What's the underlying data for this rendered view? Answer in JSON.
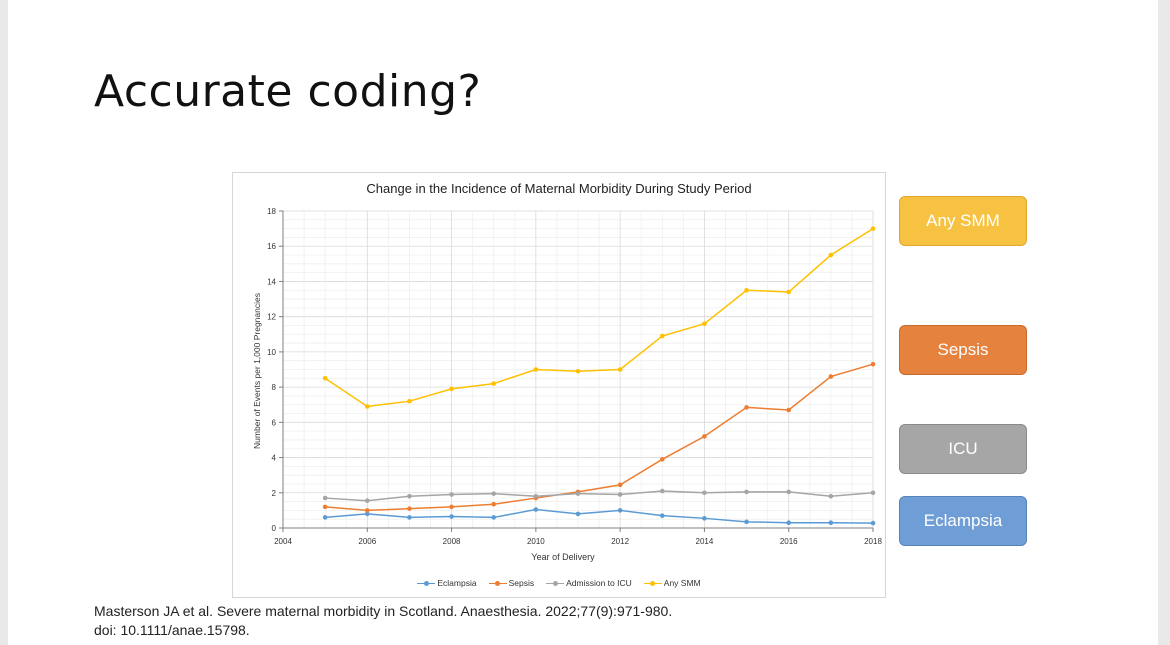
{
  "slide": {
    "title": "Accurate coding?",
    "citation_line1": "Masterson JA et al. Severe maternal morbidity in Scotland. Anaesthesia. 2022;77(9):971-980.",
    "citation_line2": "doi: 10.1111/anae.15798."
  },
  "category_boxes": [
    {
      "label": "Any SMM",
      "color": "#f7c242",
      "border": "#e0a82a"
    },
    {
      "label": "Sepsis",
      "color": "#e5823e",
      "border": "#c86a2c"
    },
    {
      "label": "ICU",
      "color": "#a6a6a6",
      "border": "#8a8a8a"
    },
    {
      "label": "Eclampsia",
      "color": "#6f9ed6",
      "border": "#5584bd"
    }
  ],
  "chart_data": {
    "type": "line",
    "title": "Change in the Incidence of Maternal Morbidity During Study Period",
    "xlabel": "Year of Delivery",
    "ylabel": "Number of Events per 1,000 Pregnancies",
    "xlim": [
      2004,
      2018
    ],
    "ylim": [
      0,
      18
    ],
    "x_ticks": [
      2004,
      2006,
      2008,
      2010,
      2012,
      2014,
      2016,
      2018
    ],
    "y_ticks": [
      0,
      2,
      4,
      6,
      8,
      10,
      12,
      14,
      16,
      18
    ],
    "grid": true,
    "legend_position": "bottom",
    "x": [
      2005,
      2006,
      2007,
      2008,
      2009,
      2010,
      2011,
      2012,
      2013,
      2014,
      2015,
      2016,
      2017,
      2018
    ],
    "series": [
      {
        "name": "Eclampsia",
        "color": "#5b9bd5",
        "values": [
          0.6,
          0.8,
          0.6,
          0.65,
          0.6,
          1.05,
          0.8,
          1.0,
          0.7,
          0.55,
          0.35,
          0.3,
          0.3,
          0.28
        ]
      },
      {
        "name": "Sepsis",
        "color": "#ed7d31",
        "values": [
          1.2,
          1.0,
          1.1,
          1.2,
          1.35,
          1.7,
          2.05,
          2.45,
          3.9,
          5.2,
          6.85,
          6.7,
          8.6,
          9.3
        ]
      },
      {
        "name": "Admission to ICU",
        "color": "#a5a5a5",
        "values": [
          1.7,
          1.55,
          1.8,
          1.9,
          1.95,
          1.8,
          1.95,
          1.9,
          2.1,
          2.0,
          2.05,
          2.05,
          1.8,
          2.0
        ]
      },
      {
        "name": "Any SMM",
        "color": "#ffc000",
        "values": [
          8.5,
          6.9,
          7.2,
          7.9,
          8.2,
          9.0,
          8.9,
          9.0,
          10.9,
          11.6,
          13.5,
          13.4,
          15.5,
          17.0
        ]
      }
    ]
  }
}
